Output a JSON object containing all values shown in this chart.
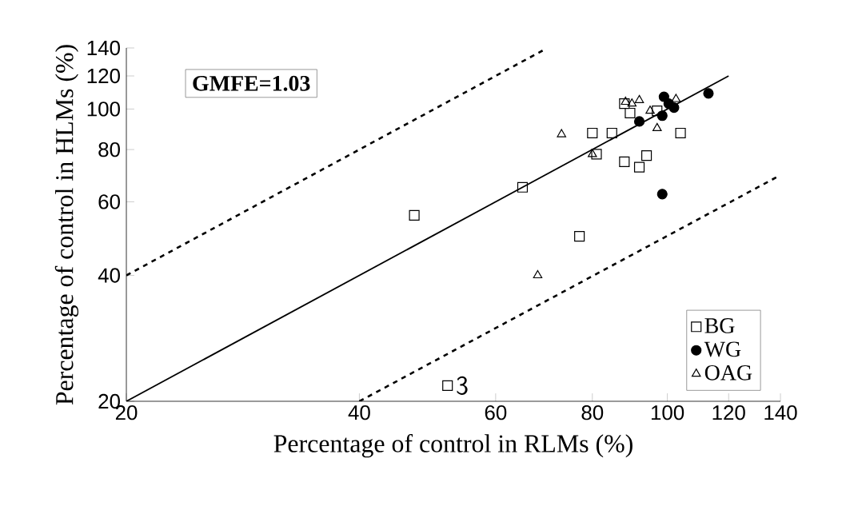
{
  "chart_data": {
    "type": "scatter",
    "xlabel": "Percentage of control in RLMs (%)",
    "ylabel": "Percentage of control in HLMs (%)",
    "log": "xy",
    "grid": false,
    "legend": "bottom right",
    "xlim": [
      20,
      140
    ],
    "ylim": [
      20,
      140
    ],
    "xticks": [
      20,
      40,
      60,
      80,
      100,
      120,
      140
    ],
    "yticks": [
      20,
      40,
      60,
      80,
      100,
      120,
      140
    ],
    "annotations": [
      "GMFE=1.03",
      {
        "text": "3",
        "x": 52,
        "y": 21.8
      }
    ],
    "series": [
      {
        "name": "BG",
        "color": "#000000",
        "marker": "square",
        "x": [
          47.1,
          65,
          77,
          52,
          80,
          84.8,
          88,
          92,
          94,
          104,
          81,
          88,
          89.5,
          97
        ],
        "values": [
          55.7,
          65,
          49.6,
          21.8,
          87.6,
          87.6,
          74.8,
          72.6,
          77.4,
          87.6,
          78,
          103,
          97.8,
          99
        ]
      },
      {
        "name": "WG",
        "color": "#000000",
        "marker": "circle",
        "x": [
          92,
          99,
          100.4,
          98.5,
          102,
          113,
          98.5
        ],
        "values": [
          93.4,
          107,
          103,
          96.4,
          100.8,
          109,
          62.6
        ]
      },
      {
        "name": "OAG",
        "color": "#000000",
        "marker": "triangle",
        "x": [
          73,
          80,
          68,
          88.3,
          92,
          97,
          102.6,
          90,
          95
        ],
        "values": [
          87,
          78,
          40,
          104,
          105,
          90,
          105.6,
          103,
          99
        ]
      },
      {
        "type": "line",
        "color": "#000000",
        "line_style": "solid",
        "x": [
          20,
          120
        ],
        "values": [
          20,
          120
        ]
      },
      {
        "type": "line",
        "color": "#000000",
        "line_style": "dashed",
        "x": [
          20,
          69
        ],
        "values": [
          40,
          138
        ]
      },
      {
        "type": "line",
        "color": "#000000",
        "line_style": "dashed",
        "x": [
          40,
          139
        ],
        "values": [
          20,
          69
        ]
      }
    ]
  }
}
